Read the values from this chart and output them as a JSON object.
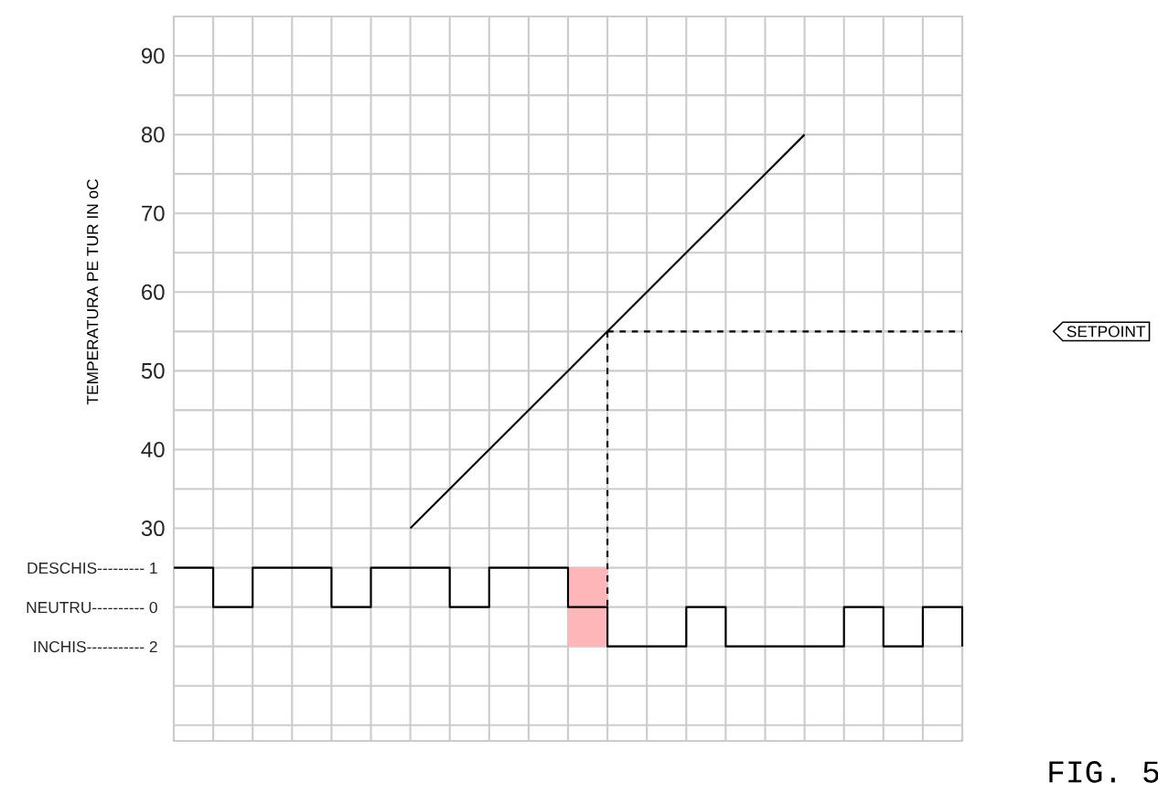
{
  "chart_data": {
    "type": "line",
    "ylabel": "TEMPERATURA PE TUR IN oC",
    "categories": [
      null,
      null,
      null,
      null,
      null,
      null,
      null,
      null,
      null,
      null,
      null,
      null,
      null,
      null,
      null,
      null,
      null,
      null,
      null,
      null,
      null
    ],
    "ylim": [
      3,
      95
    ],
    "yticks": [
      {
        "value": 5,
        "label": null
      },
      {
        "value": 10,
        "label": null
      },
      {
        "value": 15,
        "label": null
      },
      {
        "value": 20,
        "label": null
      },
      {
        "value": 25,
        "label": null
      },
      30,
      {
        "value": 35,
        "label": null
      },
      40,
      {
        "value": 45,
        "label": null
      },
      50,
      {
        "value": 55,
        "label": null
      },
      60,
      {
        "value": 65,
        "label": null
      },
      70,
      {
        "value": 75,
        "label": null
      },
      80,
      {
        "value": 85,
        "label": null
      },
      90
    ],
    "grid": true,
    "series": [
      {
        "type": "bar",
        "color": "#ffb6b9",
        "base": [
          null,
          null,
          null,
          null,
          null,
          null,
          null,
          null,
          null,
          null,
          15,
          null,
          null,
          null,
          null,
          null,
          null,
          null,
          null,
          null,
          null
        ],
        "values": [
          null,
          null,
          null,
          null,
          null,
          null,
          null,
          null,
          null,
          null,
          10,
          null,
          null,
          null,
          null,
          null,
          null,
          null,
          null,
          null,
          null
        ]
      },
      {
        "color": "#000000",
        "values": [
          null,
          null,
          null,
          null,
          null,
          null,
          30,
          35,
          40,
          45,
          50,
          55,
          60,
          65,
          70,
          75,
          80,
          null,
          null,
          null,
          null
        ]
      },
      {
        "color": "#000000",
        "line_style": "dashed",
        "values": [
          null,
          null,
          null,
          null,
          null,
          null,
          null,
          null,
          null,
          null,
          null,
          55,
          55,
          55,
          55,
          55,
          55,
          55,
          55,
          55,
          55
        ],
        "errors": [
          null,
          null,
          null,
          null,
          null,
          null,
          null,
          null,
          null,
          null,
          null,
          [
            20,
            55
          ],
          null,
          null,
          null,
          null,
          null,
          null,
          null,
          null,
          null
        ]
      },
      {
        "type": "step",
        "color": "#000000",
        "values": [
          25,
          20,
          25,
          25,
          20,
          25,
          25,
          20,
          25,
          25,
          20,
          15,
          15,
          20,
          15,
          15,
          15,
          20,
          15,
          20,
          15
        ]
      }
    ],
    "annotations": [
      "DESCHIS--------- 1",
      "NEUTRU---------- 0",
      "INCHIS----------- 2",
      "SETPOINT",
      "FIG. 5"
    ]
  }
}
